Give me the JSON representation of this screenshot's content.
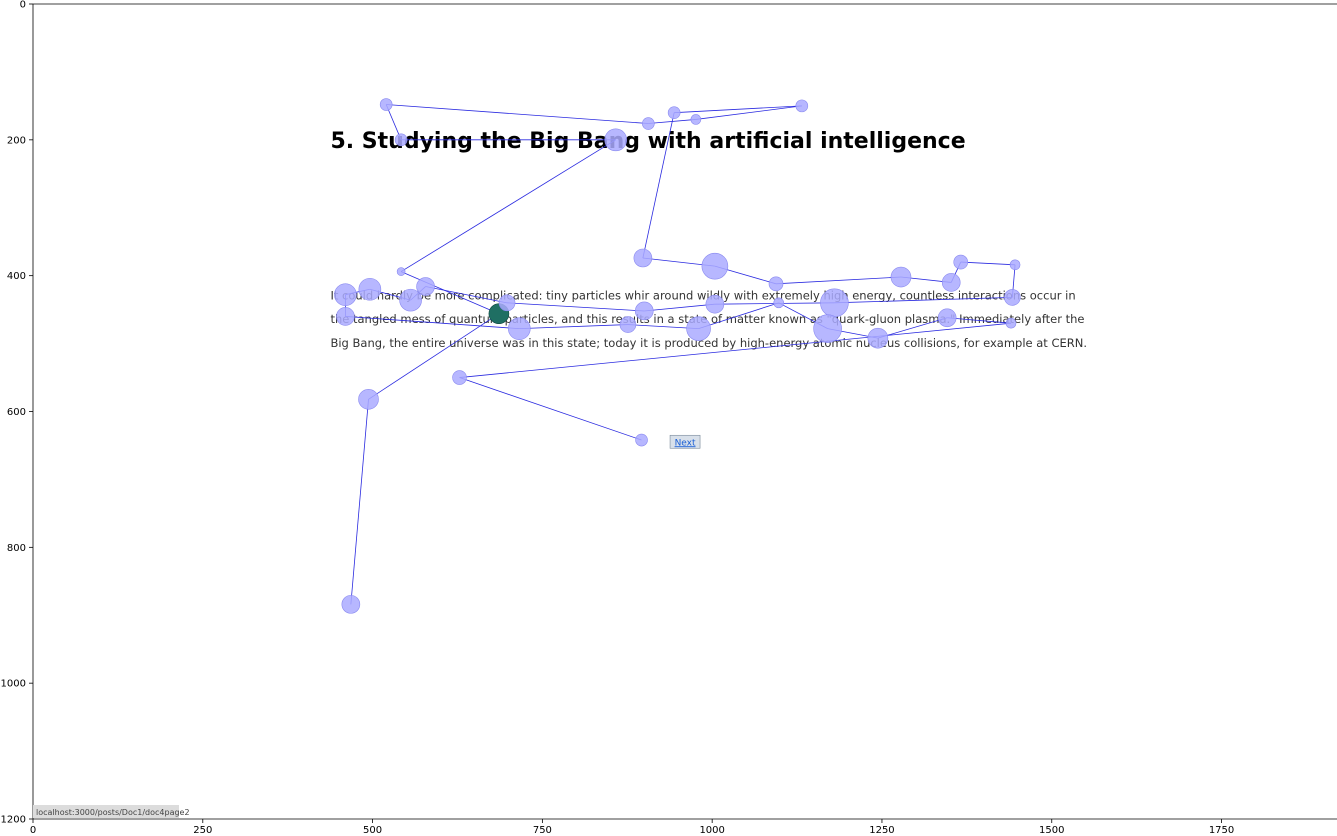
{
  "chart_data": {
    "type": "scatter",
    "xlim": [
      0,
      1920
    ],
    "ylim": [
      1200,
      0
    ],
    "x_ticks": [
      0,
      250,
      500,
      750,
      1000,
      1250,
      1500,
      1750
    ],
    "y_ticks": [
      0,
      200,
      400,
      600,
      800,
      1000,
      1200
    ],
    "grid": false,
    "page": {
      "heading": "5. Studying the Big Bang with artificial intelligence",
      "paragraph_lines": [
        "It could hardly be more complicated: tiny particles whir around wildly with extremely high energy, countless interactions occur in",
        "the tangled mess of quantum particles, and this results in a state of matter known as \"quark-gluon plasma.\" Immediately after the",
        "Big Bang, the entire universe was in this state; today it is produced by high-energy atomic nucleus collisions, for example at CERN."
      ],
      "next_label": "Next",
      "status_url": "localhost:3000/posts/Doc1/doc4page2"
    },
    "fixations": [
      {
        "x": 468,
        "y": 884,
        "r": 9
      },
      {
        "x": 494,
        "y": 582,
        "r": 10
      },
      {
        "x": 686,
        "y": 456,
        "r": 10
      },
      {
        "x": 542,
        "y": 394,
        "r": 4
      },
      {
        "x": 858,
        "y": 200,
        "r": 11
      },
      {
        "x": 542,
        "y": 200,
        "r": 6
      },
      {
        "x": 520,
        "y": 148,
        "r": 6
      },
      {
        "x": 906,
        "y": 176,
        "r": 6
      },
      {
        "x": 976,
        "y": 170,
        "r": 5
      },
      {
        "x": 1132,
        "y": 150,
        "r": 6
      },
      {
        "x": 944,
        "y": 160,
        "r": 6
      },
      {
        "x": 898,
        "y": 374,
        "r": 9
      },
      {
        "x": 1004,
        "y": 386,
        "r": 13
      },
      {
        "x": 1094,
        "y": 412,
        "r": 7
      },
      {
        "x": 1278,
        "y": 402,
        "r": 10
      },
      {
        "x": 1352,
        "y": 410,
        "r": 9
      },
      {
        "x": 1366,
        "y": 380,
        "r": 7
      },
      {
        "x": 1446,
        "y": 384,
        "r": 5
      },
      {
        "x": 1442,
        "y": 432,
        "r": 8
      },
      {
        "x": 1180,
        "y": 440,
        "r": 14
      },
      {
        "x": 1004,
        "y": 442,
        "r": 9
      },
      {
        "x": 900,
        "y": 452,
        "r": 9
      },
      {
        "x": 698,
        "y": 440,
        "r": 8
      },
      {
        "x": 578,
        "y": 416,
        "r": 9
      },
      {
        "x": 556,
        "y": 436,
        "r": 11
      },
      {
        "x": 496,
        "y": 420,
        "r": 11
      },
      {
        "x": 460,
        "y": 428,
        "r": 11
      },
      {
        "x": 460,
        "y": 460,
        "r": 9
      },
      {
        "x": 716,
        "y": 478,
        "r": 11
      },
      {
        "x": 876,
        "y": 472,
        "r": 8
      },
      {
        "x": 980,
        "y": 478,
        "r": 12
      },
      {
        "x": 1098,
        "y": 440,
        "r": 5
      },
      {
        "x": 1170,
        "y": 478,
        "r": 14
      },
      {
        "x": 1244,
        "y": 492,
        "r": 10
      },
      {
        "x": 1346,
        "y": 462,
        "r": 9
      },
      {
        "x": 1440,
        "y": 470,
        "r": 5
      },
      {
        "x": 628,
        "y": 550,
        "r": 7
      },
      {
        "x": 896,
        "y": 642,
        "r": 6
      }
    ],
    "current_fixation_index": 2
  },
  "colors": {
    "fixation_fill": "#aaaaff",
    "fixation_stroke": "#8a8af0",
    "scanpath": "#2a2ae0",
    "current_fill": "#1f6f63",
    "next_bg": "#d8e0ea"
  }
}
